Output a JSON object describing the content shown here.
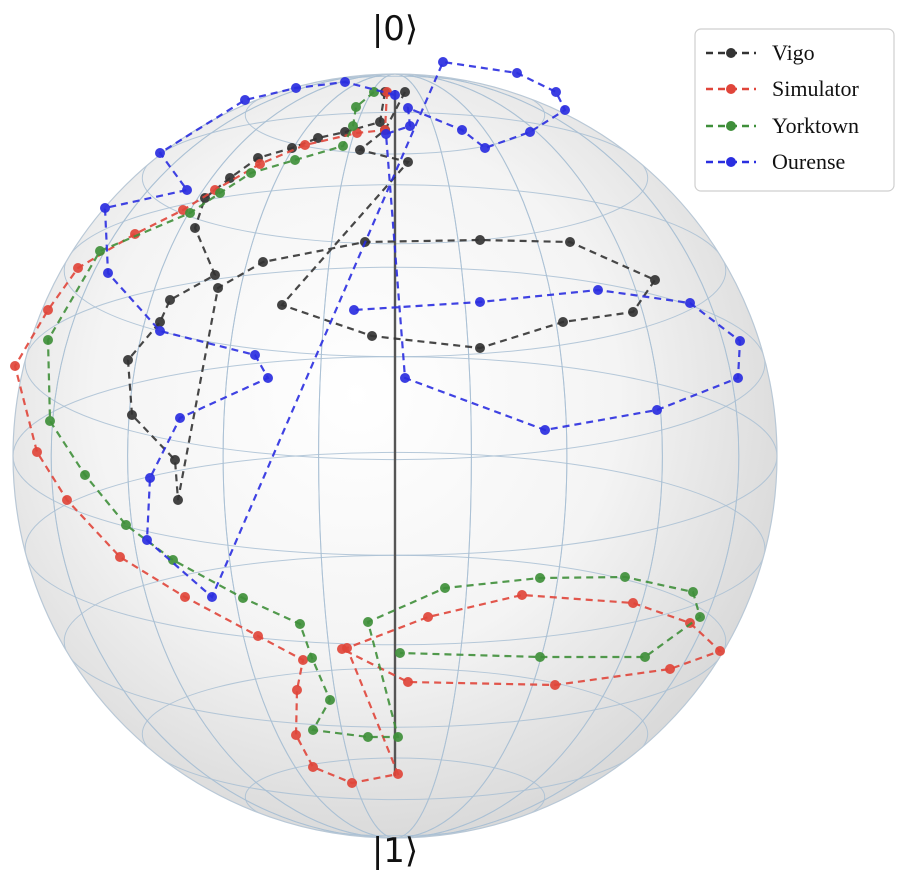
{
  "chart_data": {
    "type": "scatter",
    "subtype": "bloch-sphere",
    "pole_labels": {
      "top": "|0⟩",
      "bottom": "|1⟩"
    },
    "legend": {
      "placement": "top-right"
    },
    "series": [
      {
        "name": "Vigo",
        "color": "#333333",
        "points": [
          [
            385,
            92
          ],
          [
            380,
            122
          ],
          [
            345,
            132
          ],
          [
            318,
            138
          ],
          [
            292,
            148
          ],
          [
            258,
            158
          ],
          [
            230,
            178
          ],
          [
            205,
            198
          ],
          [
            195,
            228
          ],
          [
            215,
            275
          ],
          [
            170,
            300
          ],
          [
            160,
            322
          ],
          [
            128,
            360
          ],
          [
            132,
            415
          ],
          [
            175,
            460
          ],
          [
            178,
            500
          ],
          [
            218,
            288
          ],
          [
            263,
            262
          ],
          [
            365,
            242
          ],
          [
            480,
            240
          ],
          [
            570,
            242
          ],
          [
            655,
            280
          ],
          [
            633,
            312
          ],
          [
            563,
            322
          ],
          [
            480,
            348
          ],
          [
            372,
            336
          ],
          [
            282,
            305
          ],
          [
            408,
            162
          ],
          [
            360,
            150
          ],
          [
            385,
            130
          ],
          [
            405,
            92
          ]
        ]
      },
      {
        "name": "Simulator",
        "color": "#e0453a",
        "points": [
          [
            387,
            92
          ],
          [
            385,
            130
          ],
          [
            357,
            133
          ],
          [
            305,
            145
          ],
          [
            260,
            164
          ],
          [
            215,
            190
          ],
          [
            183,
            210
          ],
          [
            135,
            234
          ],
          [
            78,
            268
          ],
          [
            48,
            310
          ],
          [
            15,
            366
          ],
          [
            37,
            452
          ],
          [
            67,
            500
          ],
          [
            120,
            557
          ],
          [
            185,
            597
          ],
          [
            258,
            636
          ],
          [
            303,
            660
          ],
          [
            297,
            690
          ],
          [
            296,
            735
          ],
          [
            313,
            767
          ],
          [
            352,
            783
          ],
          [
            398,
            774
          ],
          [
            347,
            648
          ],
          [
            428,
            617
          ],
          [
            522,
            595
          ],
          [
            633,
            603
          ],
          [
            690,
            623
          ],
          [
            720,
            651
          ],
          [
            670,
            669
          ],
          [
            555,
            685
          ],
          [
            408,
            682
          ],
          [
            342,
            649
          ]
        ]
      },
      {
        "name": "Yorktown",
        "color": "#3f8f3a",
        "points": [
          [
            374,
            92
          ],
          [
            356,
            107
          ],
          [
            353,
            126
          ],
          [
            343,
            146
          ],
          [
            295,
            160
          ],
          [
            251,
            173
          ],
          [
            220,
            193
          ],
          [
            190,
            213
          ],
          [
            100,
            251
          ],
          [
            48,
            340
          ],
          [
            50,
            421
          ],
          [
            85,
            475
          ],
          [
            126,
            525
          ],
          [
            173,
            560
          ],
          [
            243,
            598
          ],
          [
            300,
            624
          ],
          [
            312,
            658
          ],
          [
            330,
            700
          ],
          [
            313,
            730
          ],
          [
            368,
            737
          ],
          [
            398,
            737
          ],
          [
            368,
            622
          ],
          [
            445,
            588
          ],
          [
            540,
            578
          ],
          [
            625,
            577
          ],
          [
            693,
            592
          ],
          [
            700,
            617
          ],
          [
            645,
            657
          ],
          [
            540,
            657
          ],
          [
            400,
            653
          ]
        ]
      },
      {
        "name": "Ourense",
        "color": "#2a2ee0",
        "points": [
          [
            395,
            95
          ],
          [
            345,
            82
          ],
          [
            296,
            88
          ],
          [
            245,
            100
          ],
          [
            160,
            153
          ],
          [
            187,
            190
          ],
          [
            105,
            208
          ],
          [
            108,
            273
          ],
          [
            160,
            331
          ],
          [
            255,
            355
          ],
          [
            268,
            378
          ],
          [
            180,
            418
          ],
          [
            150,
            478
          ],
          [
            147,
            540
          ],
          [
            212,
            597
          ],
          [
            443,
            62
          ],
          [
            517,
            73
          ],
          [
            556,
            92
          ],
          [
            565,
            110
          ],
          [
            530,
            132
          ],
          [
            485,
            148
          ],
          [
            462,
            130
          ],
          [
            408,
            108
          ],
          [
            410,
            126
          ],
          [
            386,
            134
          ],
          [
            405,
            378
          ],
          [
            545,
            430
          ],
          [
            657,
            410
          ],
          [
            738,
            378
          ],
          [
            740,
            341
          ],
          [
            690,
            303
          ],
          [
            598,
            290
          ],
          [
            480,
            302
          ],
          [
            354,
            310
          ]
        ]
      }
    ]
  }
}
